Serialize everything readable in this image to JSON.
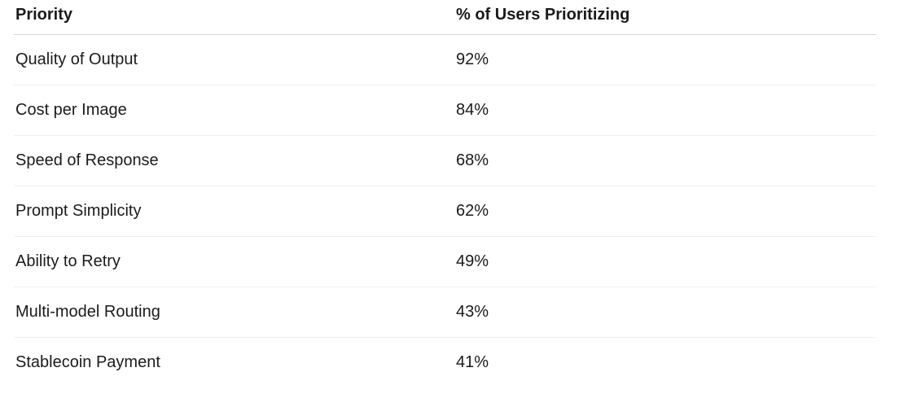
{
  "table": {
    "columns": [
      {
        "label": "Priority"
      },
      {
        "label": "% of Users Prioritizing"
      }
    ],
    "rows": [
      {
        "priority": "Quality of Output",
        "percent": "92%"
      },
      {
        "priority": "Cost per Image",
        "percent": "84%"
      },
      {
        "priority": "Speed of Response",
        "percent": "68%"
      },
      {
        "priority": "Prompt Simplicity",
        "percent": "62%"
      },
      {
        "priority": "Ability to Retry",
        "percent": "49%"
      },
      {
        "priority": "Multi-model Routing",
        "percent": "43%"
      },
      {
        "priority": "Stablecoin Payment",
        "percent": "41%"
      }
    ],
    "colors": {
      "text": "#1b1b1b",
      "header_border": "#d4d4d4",
      "row_border": "#efefef",
      "background": "#ffffff"
    }
  },
  "chart_data": {
    "type": "table",
    "title": "",
    "categories": [
      "Quality of Output",
      "Cost per Image",
      "Speed of Response",
      "Prompt Simplicity",
      "Ability to Retry",
      "Multi-model Routing",
      "Stablecoin Payment"
    ],
    "values": [
      92,
      84,
      68,
      62,
      49,
      43,
      41
    ],
    "xlabel": "Priority",
    "ylabel": "% of Users Prioritizing"
  }
}
